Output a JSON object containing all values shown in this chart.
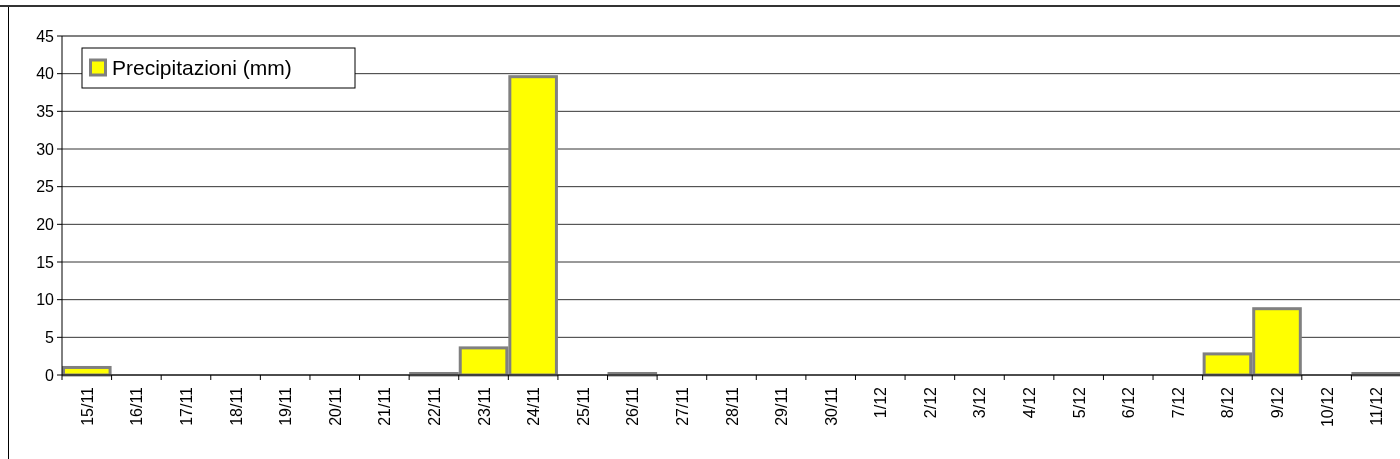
{
  "chart_data": {
    "type": "bar",
    "categories": [
      "15/11",
      "16/11",
      "17/11",
      "18/11",
      "19/11",
      "20/11",
      "21/11",
      "22/11",
      "23/11",
      "24/11",
      "25/11",
      "26/11",
      "27/11",
      "28/11",
      "29/11",
      "30/11",
      "1/12",
      "2/12",
      "3/12",
      "4/12",
      "5/12",
      "6/12",
      "7/12",
      "8/12",
      "9/12",
      "10/12",
      "11/12"
    ],
    "series": [
      {
        "name": "Precipitazioni (mm)",
        "color": "#ffff00",
        "values": [
          1.0,
          0,
          0,
          0,
          0,
          0,
          0,
          0.2,
          3.6,
          39.6,
          0,
          0.2,
          0,
          0,
          0,
          0,
          0,
          0,
          0,
          0,
          0,
          0,
          0,
          2.8,
          8.8,
          0,
          0.2
        ]
      }
    ],
    "ylim": [
      0,
      45
    ],
    "yticks": [
      0,
      5,
      10,
      15,
      20,
      25,
      30,
      35,
      40,
      45
    ],
    "grid": "y",
    "legend": "top left"
  }
}
